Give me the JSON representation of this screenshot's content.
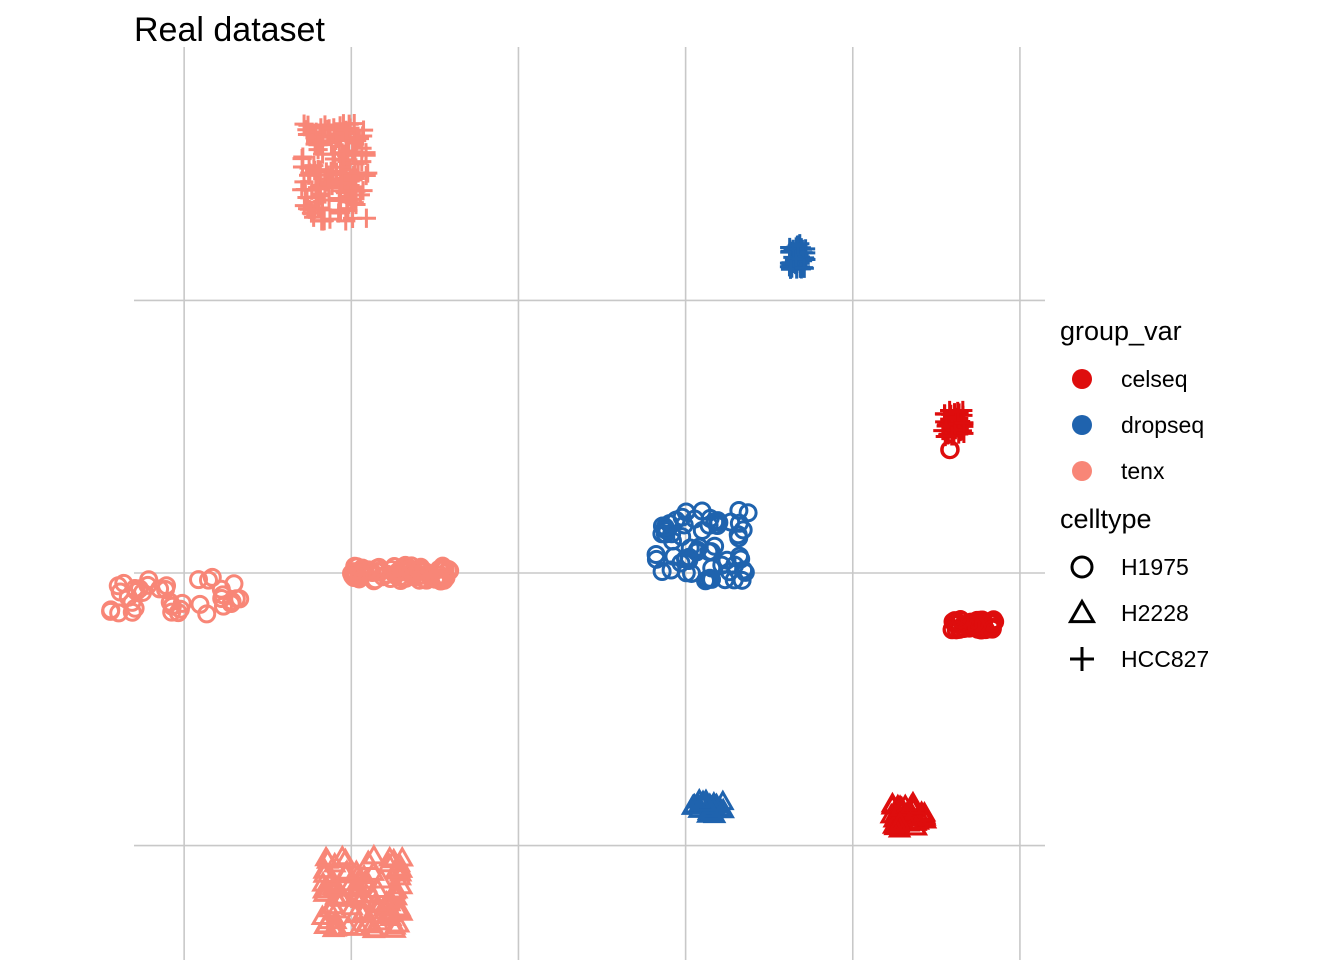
{
  "chart_data": {
    "type": "scatter",
    "title": "Real dataset",
    "xlabel": "",
    "ylabel": "",
    "grid": true,
    "axis_ticks_shown": false,
    "xlim": [
      -0.3,
      5.15
    ],
    "ylim": [
      -0.42,
      2.93
    ],
    "gridlines_x": [
      0,
      1,
      2,
      3,
      4,
      5
    ],
    "gridlines_y": [
      0,
      1,
      2
    ],
    "legend_position": "right",
    "legends": [
      {
        "title": "group_var",
        "kind": "color",
        "entries": [
          {
            "label": "celseq",
            "color": "#DE0D0D"
          },
          {
            "label": "dropseq",
            "color": "#1F63AE"
          },
          {
            "label": "tenx",
            "color": "#F88677"
          }
        ]
      },
      {
        "title": "celltype",
        "kind": "shape",
        "entries": [
          {
            "label": "H1975",
            "shape": "circle"
          },
          {
            "label": "H2228",
            "shape": "triangle"
          },
          {
            "label": "HCC827",
            "shape": "plus"
          }
        ]
      }
    ],
    "clusters": [
      {
        "group_var": "tenx",
        "celltype": "HCC827",
        "x": 0.9,
        "y": 2.47,
        "spread_x": 0.2,
        "spread_y": 0.18,
        "count": 160
      },
      {
        "group_var": "dropseq",
        "celltype": "HCC827",
        "x": 3.67,
        "y": 2.16,
        "spread_x": 0.05,
        "spread_y": 0.05,
        "count": 40
      },
      {
        "group_var": "celseq",
        "celltype": "HCC827",
        "x": 4.6,
        "y": 1.55,
        "spread_x": 0.07,
        "spread_y": 0.05,
        "count": 40
      },
      {
        "group_var": "celseq",
        "celltype": "H1975",
        "x": 4.58,
        "y": 1.45,
        "spread_x": 0.005,
        "spread_y": 0.005,
        "count": 2
      },
      {
        "group_var": "dropseq",
        "celltype": "H1975",
        "x": 3.1,
        "y": 1.1,
        "spread_x": 0.28,
        "spread_y": 0.13,
        "count": 60
      },
      {
        "group_var": "dropseq",
        "celltype": "H1975",
        "x": 2.87,
        "y": 1.15,
        "spread_x": 0.02,
        "spread_y": 0.02,
        "count": 4
      },
      {
        "group_var": "tenx",
        "celltype": "H1975",
        "x": 1.3,
        "y": 1.0,
        "spread_x": 0.3,
        "spread_y": 0.03,
        "count": 80
      },
      {
        "group_var": "tenx",
        "celltype": "H1975",
        "x": -0.05,
        "y": 0.92,
        "spread_x": 0.4,
        "spread_y": 0.07,
        "count": 40
      },
      {
        "group_var": "celseq",
        "celltype": "H1975",
        "x": 4.72,
        "y": 0.81,
        "spread_x": 0.13,
        "spread_y": 0.02,
        "count": 50
      },
      {
        "group_var": "dropseq",
        "celltype": "H2228",
        "x": 3.14,
        "y": 0.14,
        "spread_x": 0.1,
        "spread_y": 0.03,
        "count": 25
      },
      {
        "group_var": "celseq",
        "celltype": "H2228",
        "x": 4.34,
        "y": 0.11,
        "spread_x": 0.11,
        "spread_y": 0.05,
        "count": 35
      },
      {
        "group_var": "tenx",
        "celltype": "H2228",
        "x": 1.07,
        "y": -0.17,
        "spread_x": 0.25,
        "spread_y": 0.14,
        "count": 100
      }
    ]
  }
}
